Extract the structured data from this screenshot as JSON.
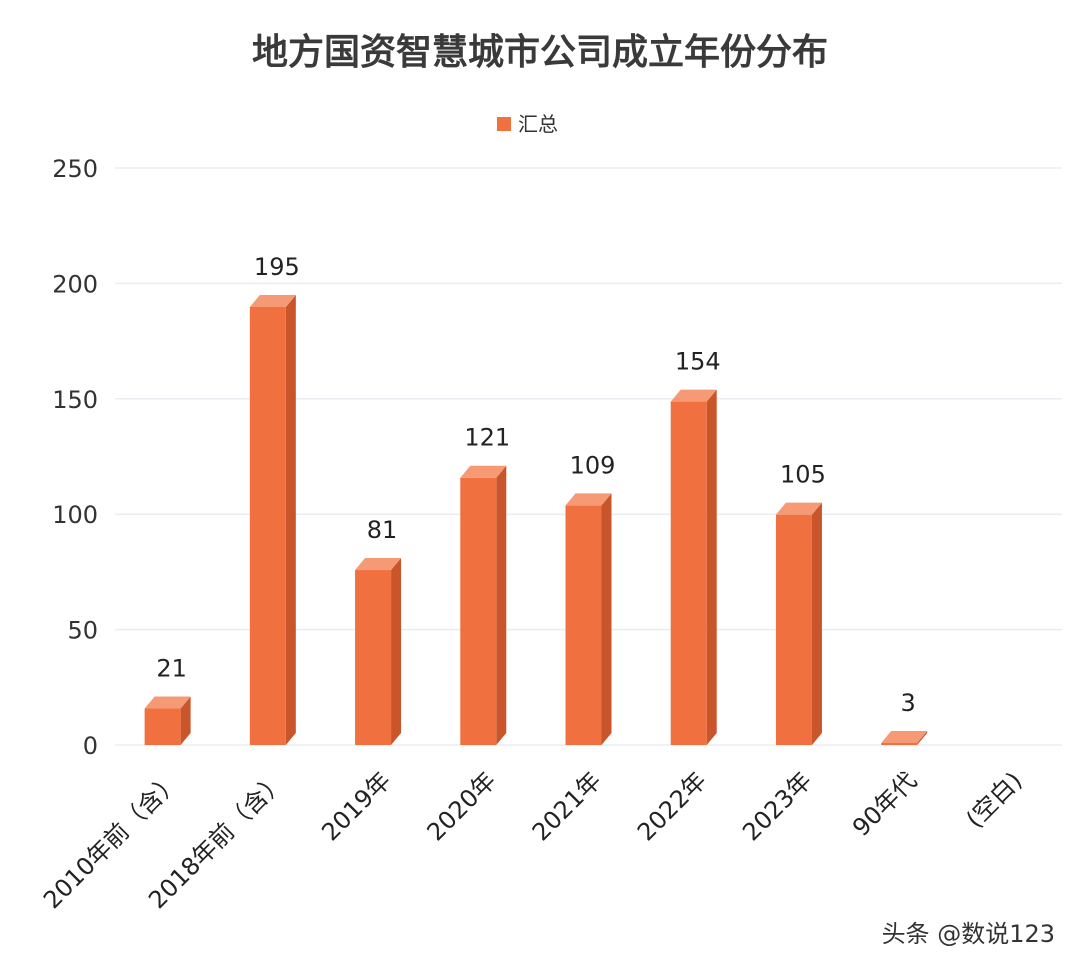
{
  "chart_data": {
    "type": "bar",
    "style": "3d-column",
    "title": "地方国资智慧城市公司成立年份分布",
    "legend": {
      "position": "top",
      "entries": [
        "汇总"
      ]
    },
    "categories": [
      "2010年前（含）",
      "2018年前（含）",
      "2019年",
      "2020年",
      "2021年",
      "2022年",
      "2023年",
      "90年代",
      "(空白)"
    ],
    "series": [
      {
        "name": "汇总",
        "values": [
          21,
          195,
          81,
          121,
          109,
          154,
          105,
          3,
          null
        ]
      }
    ],
    "data_labels": [
      "21",
      "195",
      "81",
      "121",
      "109",
      "154",
      "105",
      "3",
      ""
    ],
    "y_ticks": [
      "0",
      "50",
      "100",
      "150",
      "200",
      "250"
    ],
    "ylim": [
      0,
      250
    ],
    "grid": true,
    "colors": {
      "bar": "#f07040",
      "bar_top": "#f59a74",
      "bar_side": "#c9552a",
      "grid": "#e9edf2"
    }
  },
  "watermark": "头条 @数说123"
}
